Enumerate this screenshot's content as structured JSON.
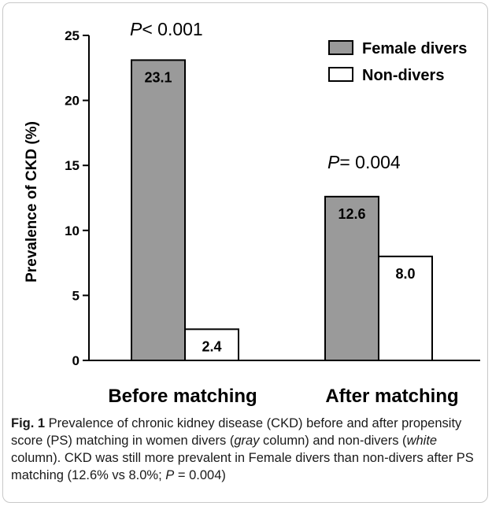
{
  "chart_data": {
    "type": "bar",
    "categories": [
      "Before matching",
      "After matching"
    ],
    "series": [
      {
        "name": "Female divers",
        "values": [
          23.1,
          12.6
        ],
        "labels": [
          "23.1",
          "12.6"
        ],
        "color": "#9a9a9a"
      },
      {
        "name": "Non-divers",
        "values": [
          2.4,
          8.0
        ],
        "labels": [
          "2.4",
          "8.0"
        ],
        "color": "#ffffff"
      }
    ],
    "ylabel": "Prevalence of CKD (%)",
    "ylim": [
      0,
      25
    ],
    "yticks": [
      "0",
      "5",
      "10",
      "15",
      "20",
      "25"
    ],
    "grid": false,
    "legend_position": "top-right",
    "annotations": [
      {
        "italic": "P",
        "text": "< 0.001",
        "category": "Before matching"
      },
      {
        "italic": "P",
        "text": "= 0.004",
        "category": "After matching"
      }
    ]
  },
  "caption": {
    "fig_label": "Fig. 1",
    "part1": " Prevalence of chronic kidney disease (CKD) before and after propensity score (PS) matching in women divers (",
    "gray_word": "gray",
    "part2": " column) and non-divers (",
    "white_word": "white",
    "part3": " column). CKD was still more prevalent in Female divers than non-divers after PS matching (12.6% vs 8.0%; ",
    "p_letter": "P",
    "part4": " = 0.004)"
  }
}
